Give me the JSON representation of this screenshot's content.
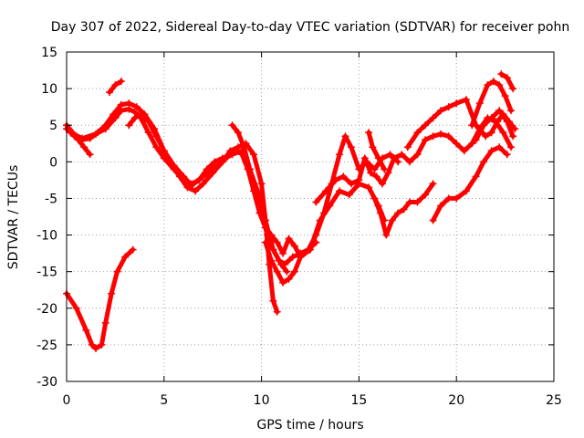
{
  "chart_data": {
    "type": "scatter",
    "title": "Day 307 of 2022, Sidereal Day-to-day VTEC variation (SDTVAR) for receiver pohn",
    "xlabel": "GPS time / hours",
    "ylabel": "SDTVAR / TECUs",
    "xlim": [
      0,
      25
    ],
    "ylim": [
      -30,
      15
    ],
    "xticks": [
      0,
      5,
      10,
      15,
      20,
      25
    ],
    "yticks": [
      -30,
      -25,
      -20,
      -15,
      -10,
      -5,
      0,
      5,
      10,
      15
    ],
    "grid": true,
    "marker": "plus",
    "color": "#ff0000",
    "series": [
      {
        "x": [
          0.0,
          0.5,
          1.0,
          1.3,
          1.5,
          1.8,
          2.0,
          2.3,
          2.6,
          3.0,
          3.4
        ],
        "y": [
          -18,
          -20,
          -23,
          -25,
          -25.5,
          -25,
          -22,
          -18,
          -15,
          -13,
          -12
        ]
      },
      {
        "x": [
          0.0,
          0.4,
          0.8,
          1.2,
          1.6,
          2.0,
          2.4,
          2.8,
          3.2,
          3.6,
          4.0,
          4.5,
          5.0,
          5.5,
          6.0,
          6.4,
          6.8,
          7.2,
          7.6,
          8.0,
          8.5,
          9.0,
          9.4,
          9.8,
          10.2,
          10.6,
          11.0,
          11.3
        ],
        "y": [
          4.5,
          3.5,
          3.0,
          3.2,
          4.0,
          5.0,
          6.5,
          7.8,
          8.0,
          7.5,
          6.5,
          4.5,
          1.5,
          -0.5,
          -2.0,
          -3.2,
          -2.5,
          -1.0,
          0.0,
          0.5,
          1.0,
          1.5,
          -1.0,
          -4.0,
          -8.0,
          -12.0,
          -14.0,
          -15.0
        ]
      },
      {
        "x": [
          0.2,
          0.8,
          1.5,
          2.0,
          2.5,
          2.8,
          3.2,
          3.5,
          3.8,
          4.2,
          4.6,
          5.0,
          5.5,
          6.0,
          6.5,
          7.0,
          7.5,
          8.0,
          8.4
        ],
        "y": [
          4.0,
          3.2,
          3.8,
          4.5,
          6.0,
          7.0,
          7.2,
          6.8,
          6.0,
          4.0,
          2.0,
          0.5,
          -1.0,
          -2.5,
          -3.0,
          -2.0,
          -1.0,
          0.0,
          1.0
        ]
      },
      {
        "x": [
          2.2,
          2.5,
          2.8
        ],
        "y": [
          9.5,
          10.5,
          11.0
        ]
      },
      {
        "x": [
          0.0,
          0.3,
          0.6,
          0.9,
          1.2
        ],
        "y": [
          5.0,
          4.0,
          3.0,
          2.0,
          1.0
        ]
      },
      {
        "x": [
          3.2,
          3.5,
          3.8,
          4.2,
          4.6,
          5.0,
          5.4,
          5.8,
          6.2,
          6.6,
          7.0,
          7.5,
          8.0,
          8.4,
          8.8,
          9.2,
          9.6,
          10.0,
          10.2,
          10.4,
          10.6,
          10.8
        ],
        "y": [
          5.0,
          6.0,
          6.5,
          5.5,
          3.5,
          1.5,
          -0.5,
          -2.0,
          -3.5,
          -4.0,
          -3.0,
          -1.5,
          0.0,
          1.5,
          2.0,
          2.5,
          1.0,
          -3.0,
          -8.0,
          -14.0,
          -19.0,
          -20.5
        ]
      },
      {
        "x": [
          8.5,
          8.8,
          9.1,
          9.4,
          9.7,
          10.0,
          10.3,
          10.6,
          10.9,
          11.2,
          11.6,
          12.0,
          12.4,
          12.8
        ],
        "y": [
          5.0,
          4.0,
          2.0,
          -1.0,
          -4.0,
          -7.0,
          -10.0,
          -12.0,
          -13.5,
          -14.0,
          -13.0,
          -12.5,
          -12.0,
          -11.0
        ]
      },
      {
        "x": [
          9.0,
          9.3,
          9.6,
          9.9,
          10.2,
          10.5,
          10.8,
          11.1,
          11.4,
          11.7,
          12.0,
          12.4,
          12.8,
          13.2,
          13.6,
          14.0,
          14.3,
          14.6,
          15.0,
          15.4,
          15.8,
          16.2,
          16.6,
          17.0
        ],
        "y": [
          1.0,
          -1.0,
          -4.0,
          -7.0,
          -9.0,
          -10.0,
          -11.0,
          -12.5,
          -10.5,
          -11.5,
          -13.0,
          -12.0,
          -10.0,
          -7.0,
          -3.0,
          1.0,
          3.5,
          2.0,
          -1.0,
          0.0,
          -1.0,
          0.5,
          1.0,
          0.0
        ]
      },
      {
        "x": [
          10.2,
          10.5,
          10.8,
          11.1,
          11.4,
          11.7,
          12.0,
          12.5,
          13.0,
          13.5,
          14.0,
          14.5,
          15.0,
          15.5,
          16.0,
          16.3
        ],
        "y": [
          -11.0,
          -13.5,
          -15.0,
          -16.5,
          -16.0,
          -15.0,
          -13.0,
          -12.0,
          -8.0,
          -6.0,
          -4.0,
          -4.5,
          -3.0,
          -3.5,
          -6.0,
          -8.0
        ]
      },
      {
        "x": [
          12.8,
          13.3,
          13.8,
          14.2,
          14.6,
          15.0,
          15.3,
          15.6,
          15.9,
          16.2,
          16.5,
          16.8,
          17.2,
          17.6,
          18.0,
          18.4,
          18.8,
          19.2,
          19.6,
          20.0,
          20.4,
          20.8,
          21.2,
          21.6,
          22.0,
          22.4,
          22.8
        ],
        "y": [
          -5.5,
          -4.0,
          -2.5,
          -2.0,
          -3.0,
          -2.5,
          0.5,
          -1.5,
          -2.0,
          -3.0,
          -1.5,
          0.5,
          1.0,
          0.0,
          1.0,
          3.0,
          3.5,
          3.8,
          3.5,
          2.5,
          1.5,
          2.5,
          4.5,
          6.0,
          5.5,
          4.0,
          2.0
        ]
      },
      {
        "x": [
          15.5,
          15.7,
          16.0,
          16.3
        ],
        "y": [
          4.0,
          2.0,
          0.5,
          -1.0
        ]
      },
      {
        "x": [
          15.8,
          16.1,
          16.4,
          16.7,
          17.0,
          17.3,
          17.6,
          18.0,
          18.4,
          18.8
        ],
        "y": [
          -5.0,
          -7.0,
          -10.0,
          -8.0,
          -7.0,
          -6.5,
          -5.5,
          -5.5,
          -4.5,
          -3.0
        ]
      },
      {
        "x": [
          17.5,
          18.0,
          18.4,
          18.8,
          19.2,
          19.6,
          20.0,
          20.5,
          21.0,
          21.5,
          21.8,
          22.1,
          22.4,
          22.7,
          23.0
        ],
        "y": [
          2.0,
          4.0,
          5.0,
          6.0,
          7.0,
          7.5,
          8.0,
          8.5,
          5.0,
          3.5,
          4.0,
          5.5,
          6.5,
          5.5,
          4.5
        ]
      },
      {
        "x": [
          18.8,
          19.2,
          19.6,
          20.0,
          20.5,
          21.0,
          21.4,
          21.8,
          22.2,
          22.6
        ],
        "y": [
          -8.0,
          -6.0,
          -5.0,
          -5.0,
          -4.0,
          -2.0,
          0.0,
          1.5,
          2.0,
          1.0
        ]
      },
      {
        "x": [
          20.8,
          21.2,
          21.6,
          21.9,
          22.2,
          22.5,
          22.8
        ],
        "y": [
          5.0,
          8.0,
          10.5,
          11.0,
          10.5,
          9.0,
          7.0
        ]
      },
      {
        "x": [
          21.0,
          21.4,
          21.8,
          22.2,
          22.6,
          22.9
        ],
        "y": [
          3.0,
          5.0,
          6.0,
          7.0,
          5.5,
          3.5
        ]
      },
      {
        "x": [
          22.3,
          22.6,
          22.9
        ],
        "y": [
          12.0,
          11.5,
          10.0
        ]
      }
    ]
  }
}
